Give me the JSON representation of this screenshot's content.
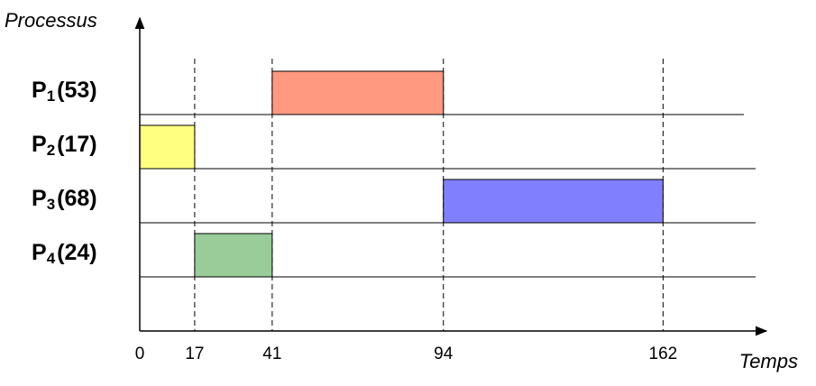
{
  "chart_data": {
    "type": "gantt",
    "y_axis_label": "Processus",
    "x_axis_label": "Temps",
    "xlim": [
      0,
      194
    ],
    "xticks": [
      0,
      17,
      41,
      94,
      162
    ],
    "grid": true,
    "tasks": [
      {
        "name": "P",
        "subscript": "1",
        "duration_label": "(53)",
        "start": 41,
        "end": 94,
        "color": "#ff9980"
      },
      {
        "name": "P",
        "subscript": "2",
        "duration_label": "(17)",
        "start": 0,
        "end": 17,
        "color": "#ffff80"
      },
      {
        "name": "P",
        "subscript": "3",
        "duration_label": "(68)",
        "start": 94,
        "end": 162,
        "color": "#8080ff"
      },
      {
        "name": "P",
        "subscript": "4",
        "duration_label": "(24)",
        "start": 17,
        "end": 41,
        "color": "#99cc99"
      }
    ]
  }
}
